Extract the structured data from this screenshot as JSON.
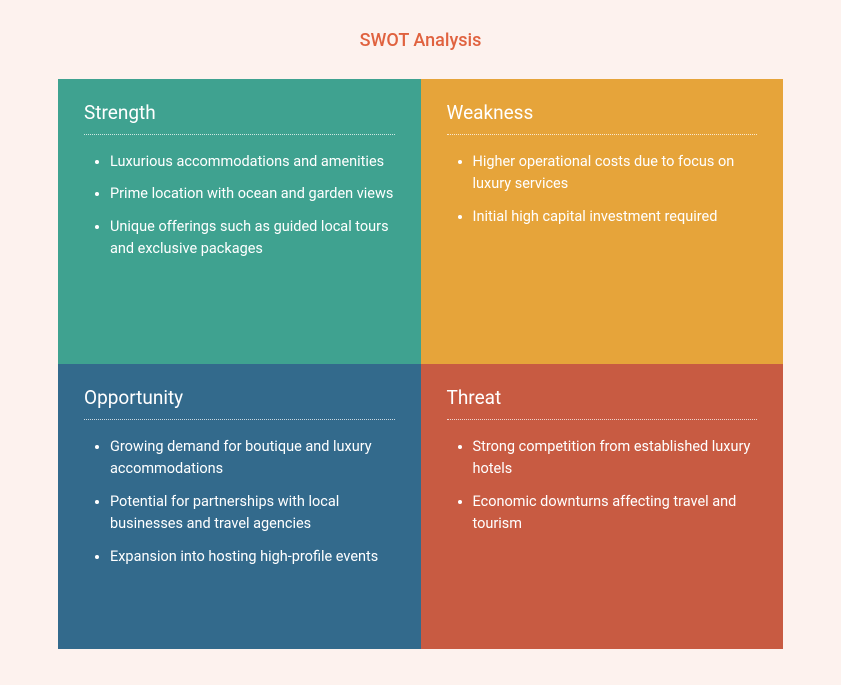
{
  "title": "SWOT Analysis",
  "title_color": "#e0623f",
  "background_color": "#fdf2ee",
  "text_color": "#ffffff",
  "grid": {
    "columns": 2,
    "rows": 2
  },
  "quadrants": [
    {
      "key": "strength",
      "title": "Strength",
      "bg_color": "#3fa290",
      "items": [
        "Luxurious accommodations and amenities",
        "Prime location with ocean and garden views",
        "Unique offerings such as guided local tours and exclusive packages"
      ]
    },
    {
      "key": "weakness",
      "title": "Weakness",
      "bg_color": "#e6a43a",
      "items": [
        "Higher operational costs due to focus on luxury services",
        "Initial high capital investment required"
      ]
    },
    {
      "key": "opportunity",
      "title": "Opportunity",
      "bg_color": "#336a8c",
      "items": [
        "Growing demand for boutique and luxury accommodations",
        "Potential for partnerships with local businesses and travel agencies",
        "Expansion into hosting high-profile events"
      ]
    },
    {
      "key": "threat",
      "title": "Threat",
      "bg_color": "#c85b42",
      "items": [
        "Strong competition from established luxury hotels",
        "Economic downturns affecting travel and tourism"
      ]
    }
  ]
}
